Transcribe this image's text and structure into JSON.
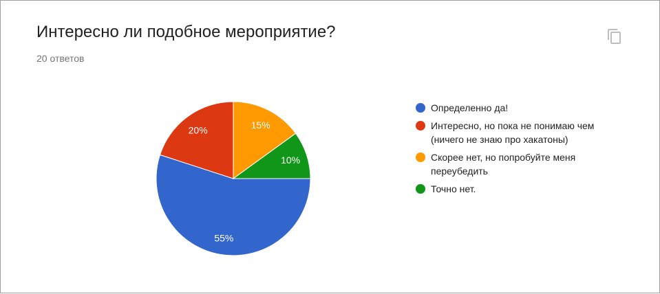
{
  "title": "Интересно ли подобное мероприятие?",
  "responses": "20 ответов",
  "copy_icon": "copy-icon",
  "chart_data": {
    "type": "pie",
    "start_angle_deg": 90,
    "legend_position": "right",
    "slices": [
      {
        "label": "Определенно да!",
        "value": 55,
        "display": "55%",
        "color": "#3366cc"
      },
      {
        "label": "Интересно, но пока не понимаю чем (ничего не знаю про хакатоны)",
        "value": 20,
        "display": "20%",
        "color": "#dc3912"
      },
      {
        "label": "Скорее нет, но попробуйте меня переубедить",
        "value": 15,
        "display": "15%",
        "color": "#ff9900"
      },
      {
        "label": "Точно нет.",
        "value": 10,
        "display": "10%",
        "color": "#109618"
      }
    ]
  }
}
